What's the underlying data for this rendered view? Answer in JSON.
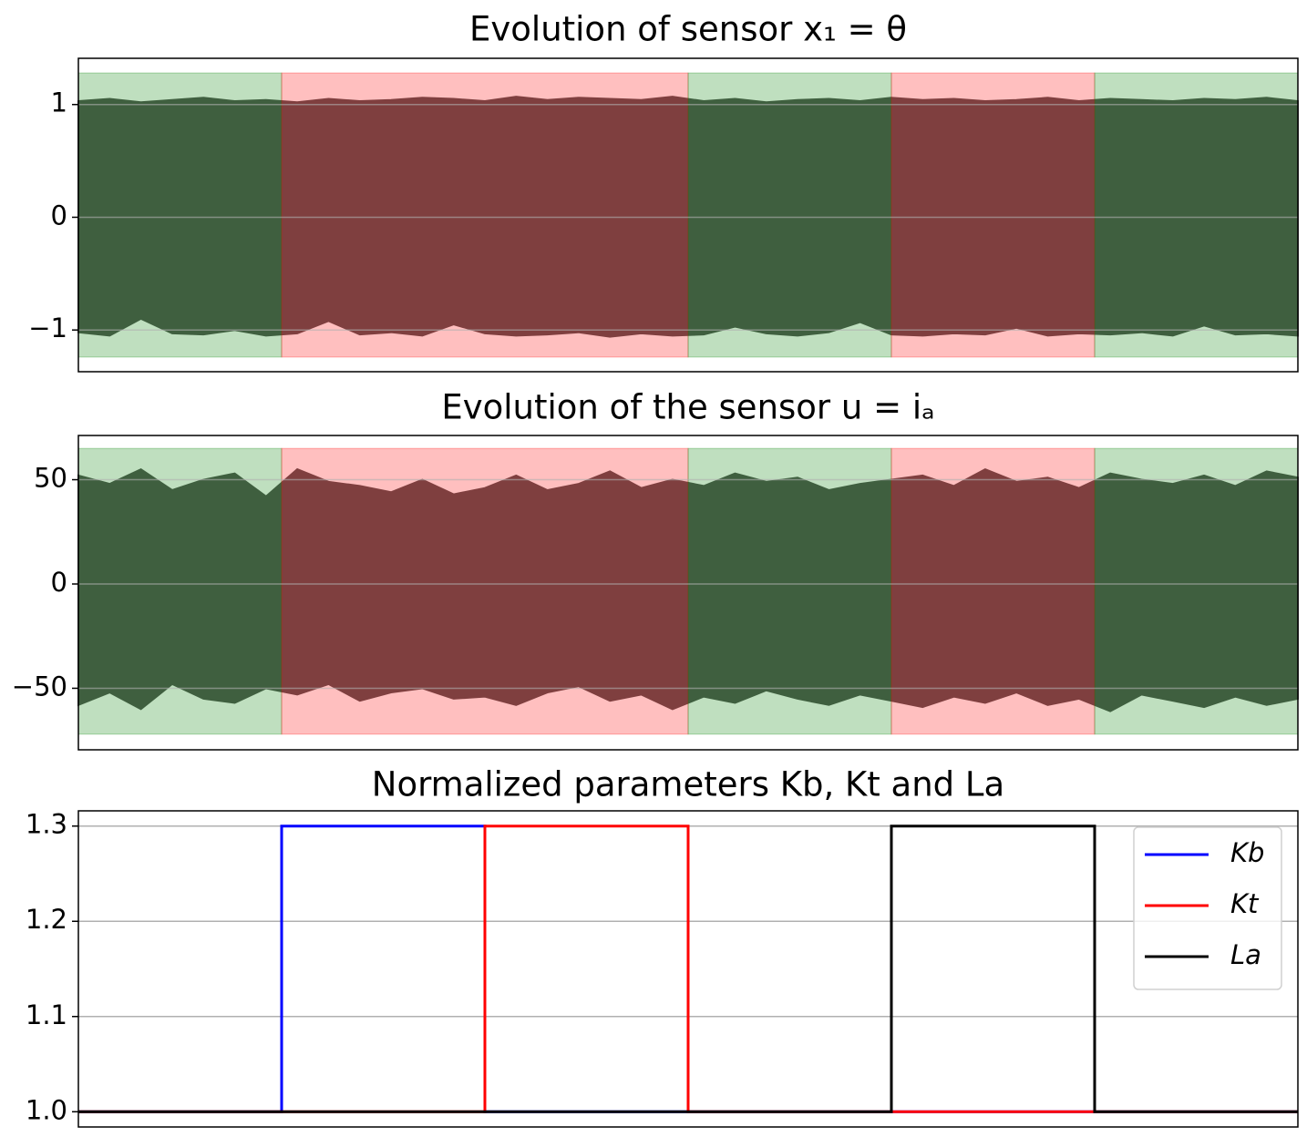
{
  "chart_data": [
    {
      "type": "band",
      "title": "Evolution of sensor x₁ = θ",
      "xlim": [
        0,
        6
      ],
      "ylim": [
        -1.37,
        1.41
      ],
      "yticks": [
        {
          "value": -1,
          "label": "−1"
        },
        0,
        1
      ],
      "grid": true,
      "color": "#555555",
      "span_ylim": [
        -1.24,
        1.28
      ],
      "spans": [
        {
          "start": 0,
          "end": 1,
          "color": "#008000"
        },
        {
          "start": 1,
          "end": 3,
          "color": "#ff0000"
        },
        {
          "start": 3,
          "end": 4,
          "color": "#008000"
        },
        {
          "start": 4,
          "end": 5,
          "color": "#ff0000"
        },
        {
          "start": 5,
          "end": 6,
          "color": "#008000"
        }
      ],
      "upper": [
        1.03,
        1.05,
        1.02,
        1.04,
        1.06,
        1.03,
        1.04,
        1.02,
        1.05,
        1.03,
        1.04,
        1.06,
        1.05,
        1.03,
        1.07,
        1.04,
        1.06,
        1.05,
        1.04,
        1.07,
        1.03,
        1.05,
        1.02,
        1.04,
        1.05,
        1.03,
        1.06,
        1.04,
        1.05,
        1.03,
        1.04,
        1.06,
        1.03,
        1.05,
        1.04,
        1.03,
        1.05,
        1.04,
        1.06,
        1.03
      ],
      "lower": [
        -1.02,
        -1.05,
        -0.9,
        -1.03,
        -1.04,
        -1.0,
        -1.05,
        -1.03,
        -0.92,
        -1.04,
        -1.02,
        -1.05,
        -0.95,
        -1.03,
        -1.05,
        -1.04,
        -1.02,
        -1.06,
        -1.03,
        -1.05,
        -1.04,
        -0.97,
        -1.03,
        -1.05,
        -1.02,
        -0.93,
        -1.04,
        -1.05,
        -1.03,
        -1.04,
        -0.98,
        -1.05,
        -1.03,
        -1.04,
        -1.02,
        -1.05,
        -0.96,
        -1.04,
        -1.03,
        -1.05
      ]
    },
    {
      "type": "band",
      "title": "Evolution of the sensor u = iₐ",
      "xlim": [
        0,
        6
      ],
      "ylim": [
        -79.5,
        71.2
      ],
      "yticks": [
        {
          "value": -50,
          "label": "−50"
        },
        0,
        50
      ],
      "grid": true,
      "color": "#555555",
      "span_ylim": [
        -72,
        65
      ],
      "spans": [
        {
          "start": 0,
          "end": 1,
          "color": "#008000"
        },
        {
          "start": 1,
          "end": 3,
          "color": "#ff0000"
        },
        {
          "start": 3,
          "end": 4,
          "color": "#008000"
        },
        {
          "start": 4,
          "end": 5,
          "color": "#ff0000"
        },
        {
          "start": 5,
          "end": 6,
          "color": "#008000"
        }
      ],
      "upper": [
        52,
        48,
        55,
        45,
        50,
        53,
        42,
        55,
        49,
        47,
        44,
        50,
        43,
        46,
        52,
        45,
        48,
        54,
        46,
        50,
        47,
        53,
        49,
        51,
        45,
        48,
        50,
        52,
        47,
        55,
        49,
        51,
        46,
        53,
        50,
        48,
        52,
        47,
        54,
        51
      ],
      "lower": [
        -58,
        -52,
        -60,
        -48,
        -55,
        -57,
        -50,
        -53,
        -48,
        -56,
        -52,
        -50,
        -55,
        -54,
        -58,
        -52,
        -49,
        -56,
        -53,
        -60,
        -54,
        -57,
        -51,
        -55,
        -58,
        -53,
        -56,
        -59,
        -54,
        -57,
        -52,
        -58,
        -55,
        -61,
        -53,
        -56,
        -59,
        -54,
        -58,
        -55
      ]
    },
    {
      "type": "line",
      "title": "Normalized parameters Kb, Kt and La",
      "xlim": [
        0,
        6
      ],
      "ylim": [
        0.984,
        1.316
      ],
      "yticks": [
        {
          "value": 1,
          "label": "1.0"
        },
        1.1,
        1.2,
        1.3
      ],
      "grid": true,
      "legend": "upper right",
      "series": [
        {
          "name": "Kb",
          "color": "#0000ff",
          "x": [
            0,
            1,
            1,
            2,
            2,
            6
          ],
          "values": [
            1,
            1,
            1.3,
            1.3,
            1,
            1
          ]
        },
        {
          "name": "Kt",
          "color": "#ff0000",
          "x": [
            0,
            2,
            2,
            3,
            3,
            6
          ],
          "values": [
            1,
            1,
            1.3,
            1.3,
            1,
            1
          ]
        },
        {
          "name": "La",
          "color": "#000000",
          "x": [
            0,
            4,
            4,
            5,
            5,
            6
          ],
          "values": [
            1,
            1,
            1.3,
            1.3,
            1,
            1
          ]
        }
      ]
    }
  ]
}
